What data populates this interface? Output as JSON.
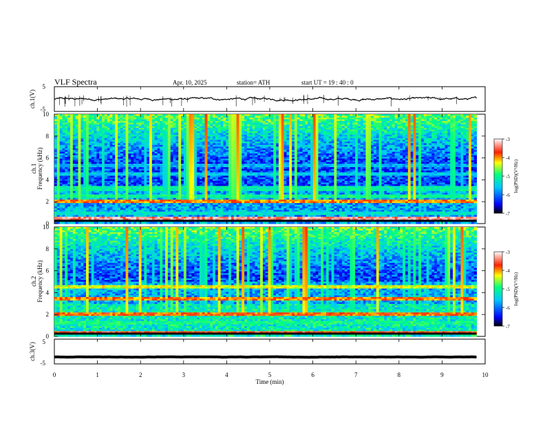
{
  "header": {
    "title": "VLF  Spectra",
    "date": "Apr. 10, 2025",
    "station": "station= ATH",
    "start": "start  UT  =    19 : 40 : 0"
  },
  "chart_data": [
    {
      "panel": "ch1-waveform",
      "type": "line",
      "ylabel": "ch.1(V)",
      "ylim": [
        -5,
        5
      ],
      "yticks": [
        "5",
        "-5"
      ],
      "xlim": [
        0,
        10
      ],
      "series": [
        {
          "x_start": 0,
          "x_end": 9.8,
          "level": 0,
          "noise_amplitude": 0.8
        }
      ],
      "colors": {
        "line": "#000000"
      }
    },
    {
      "panel": "ch1-spectrogram",
      "type": "heatmap",
      "ylabel": "ch.1\nFrequency  (kHz)",
      "ylim": [
        0,
        10
      ],
      "yticks": [
        "10",
        "8",
        "6",
        "4",
        "2",
        "0"
      ],
      "xlim": [
        0,
        10
      ],
      "data_extent_min": 9.8,
      "colorbar": {
        "label": "log(PSD)(V²/Hz)",
        "range": [
          -7,
          -3
        ],
        "ticks": [
          "-3",
          "-4",
          "-5",
          "-6",
          "-7"
        ]
      },
      "bands": [
        {
          "freq_khz": 0.5,
          "level": -3.2
        },
        {
          "freq_khz": 1.0,
          "level": -5.2
        },
        {
          "freq_khz": 2.1,
          "level": -3.8
        },
        {
          "freq_khz": 2.5,
          "level": -4.9
        },
        {
          "freq_khz": 3.2,
          "level": -5.0
        },
        {
          "freq_khz": 4.6,
          "level": -5.4
        },
        {
          "freq_khz": 5.3,
          "level": -5.6
        }
      ]
    },
    {
      "panel": "ch2-spectrogram",
      "type": "heatmap",
      "ylabel": "ch.2\nFrequency  (kHz)",
      "ylim": [
        0,
        10
      ],
      "yticks": [
        "10",
        "8",
        "6",
        "4",
        "2",
        "0"
      ],
      "xlim": [
        0,
        10
      ],
      "data_extent_min": 9.8,
      "colorbar": {
        "label": "log(PSD)(V²/Hz)",
        "range": [
          -7,
          -3
        ],
        "ticks": [
          "-3",
          "-4",
          "-5",
          "-6",
          "-7"
        ]
      },
      "bands": [
        {
          "freq_khz": 0.3,
          "level": -3.5
        },
        {
          "freq_khz": 1.2,
          "level": -4.9
        },
        {
          "freq_khz": 2.0,
          "level": -3.7
        },
        {
          "freq_khz": 3.5,
          "level": -3.8
        },
        {
          "freq_khz": 4.6,
          "level": -4.2
        }
      ]
    },
    {
      "panel": "ch3-waveform",
      "type": "line",
      "ylabel": "ch.3(V)",
      "ylim": [
        -5,
        5
      ],
      "yticks": [
        "5",
        "-5"
      ],
      "xlim": [
        0,
        10
      ],
      "series": [
        {
          "x_start": 0,
          "x_end": 9.8,
          "level": -2.2,
          "noise_amplitude": 0.1
        }
      ],
      "colors": {
        "line": "#000000"
      }
    }
  ],
  "x_axis": {
    "label": "Time  (min)",
    "ticks": [
      "0",
      "1",
      "2",
      "3",
      "4",
      "5",
      "6",
      "7",
      "8",
      "9",
      "10"
    ]
  },
  "colors": {
    "colormap": [
      "#000080",
      "#0000ff",
      "#00c8ff",
      "#00ff80",
      "#ffff00",
      "#ff8000",
      "#ff0000",
      "#ffffff"
    ]
  }
}
